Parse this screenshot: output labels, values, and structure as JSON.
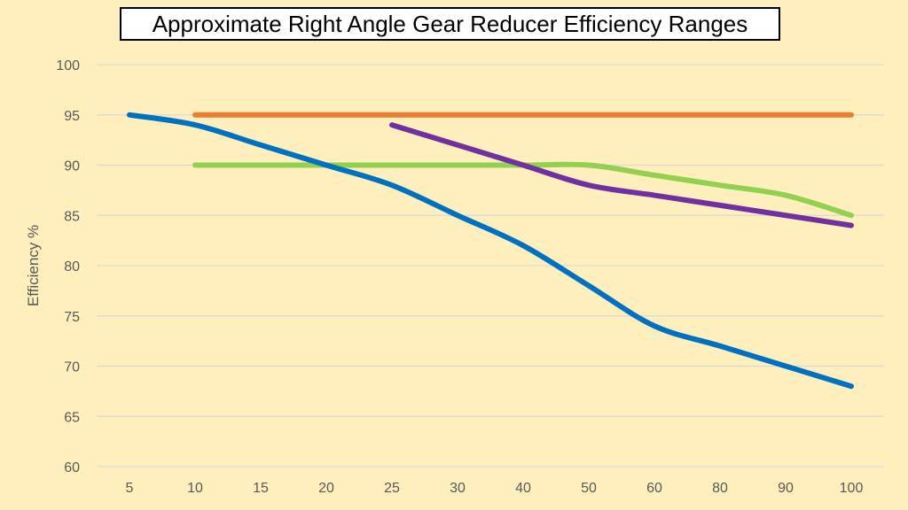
{
  "chart_data": {
    "type": "line",
    "title": "Approximate Right Angle Gear Reducer Efficiency Ranges",
    "xlabel": "",
    "ylabel": "Efficiency %",
    "ylim": [
      60,
      100
    ],
    "yticks": [
      60,
      65,
      70,
      75,
      80,
      85,
      90,
      95,
      100
    ],
    "grid": true,
    "smooth": true,
    "categories": [
      "5",
      "10",
      "15",
      "20",
      "25",
      "30",
      "40",
      "50",
      "60",
      "80",
      "90",
      "100"
    ],
    "series": [
      {
        "color": "#ED7D31",
        "values": [
          null,
          95,
          95,
          95,
          95,
          95,
          95,
          95,
          95,
          95,
          95,
          95
        ]
      },
      {
        "color": "#92D050",
        "values": [
          null,
          90,
          90,
          90,
          90,
          90,
          90,
          90,
          89,
          88,
          87,
          85
        ]
      },
      {
        "color": "#7030A0",
        "values": [
          null,
          null,
          null,
          null,
          94,
          92,
          90,
          88,
          87,
          86,
          85,
          84
        ]
      },
      {
        "color": "#0070C0",
        "values": [
          95,
          94,
          92,
          90,
          88,
          85,
          82,
          78,
          74,
          72,
          70,
          68
        ]
      }
    ]
  }
}
